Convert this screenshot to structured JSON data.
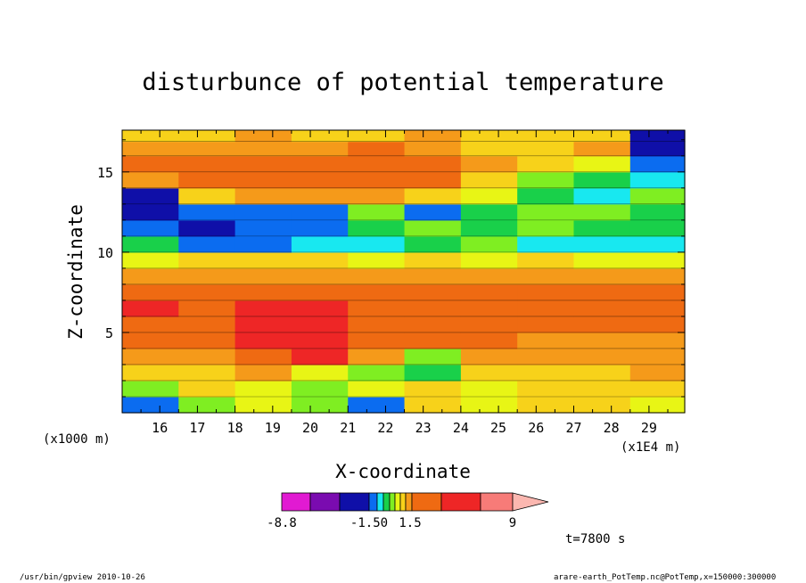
{
  "chart_data": {
    "type": "heatmap",
    "title": "disturbunce of potential temperature",
    "xlabel": "X-coordinate",
    "ylabel": "Z-coordinate",
    "x_unit": "(x1E4 m)",
    "y_unit": "(x1000 m)",
    "x_ticks": [
      16,
      17,
      18,
      19,
      20,
      21,
      22,
      23,
      24,
      25,
      26,
      27,
      28,
      29
    ],
    "y_ticks": [
      5,
      10,
      15
    ],
    "xlim": [
      15.0,
      29.95
    ],
    "ylim": [
      0,
      17.6
    ],
    "time_label": "t=7800 s",
    "colorbar": {
      "labels": [
        "-8.8",
        "-1.50",
        "1.5",
        "9"
      ],
      "levels": [
        -8.8,
        -6.0,
        -3.5,
        -1.5,
        -1.0,
        -0.5,
        0,
        0.5,
        1.0,
        1.5,
        3.5,
        6.0,
        9
      ],
      "colors": [
        "#e11ad2",
        "#7a0bb0",
        "#0f0fa8",
        "#0b6cf0",
        "#18e8f0",
        "#19d04a",
        "#7fee22",
        "#e8f515",
        "#f7d21a",
        "#f59a1a",
        "#ef6a12",
        "#ee2626",
        "#f77b78",
        "#fbb7b0"
      ]
    },
    "rows_z": [
      0.5,
      1.5,
      2.5,
      3.5,
      4.5,
      5.5,
      6.5,
      7.5,
      8.5,
      9.5,
      10.5,
      11.5,
      12.5,
      13.5,
      14.5,
      15.5,
      16.5,
      17.3
    ],
    "rows_x_breaks": [
      15.0,
      16.5,
      18.0,
      19.5,
      21.0,
      22.5,
      24.0,
      25.5,
      27.0,
      28.5,
      29.95
    ],
    "values_level_index": [
      [
        3,
        6,
        7,
        6,
        3,
        8,
        7,
        8,
        8,
        7
      ],
      [
        6,
        8,
        7,
        6,
        7,
        8,
        7,
        8,
        8,
        8
      ],
      [
        8,
        8,
        9,
        7,
        6,
        5,
        8,
        8,
        8,
        9
      ],
      [
        9,
        9,
        10,
        11,
        9,
        6,
        9,
        9,
        9,
        9
      ],
      [
        10,
        10,
        11,
        11,
        10,
        10,
        10,
        9,
        9,
        9
      ],
      [
        10,
        10,
        11,
        11,
        10,
        10,
        10,
        10,
        10,
        10
      ],
      [
        11,
        10,
        11,
        11,
        10,
        10,
        10,
        10,
        10,
        10
      ],
      [
        10,
        10,
        10,
        10,
        10,
        10,
        10,
        10,
        10,
        10
      ],
      [
        9,
        9,
        9,
        9,
        9,
        9,
        9,
        9,
        9,
        9
      ],
      [
        7,
        8,
        8,
        8,
        7,
        8,
        7,
        8,
        7,
        7
      ],
      [
        5,
        3,
        3,
        4,
        4,
        5,
        6,
        4,
        4,
        4
      ],
      [
        3,
        2,
        3,
        3,
        5,
        6,
        5,
        6,
        5,
        5
      ],
      [
        2,
        3,
        3,
        3,
        6,
        3,
        5,
        6,
        6,
        5
      ],
      [
        2,
        8,
        9,
        9,
        9,
        8,
        7,
        5,
        4,
        6
      ],
      [
        9,
        10,
        10,
        10,
        10,
        10,
        8,
        6,
        5,
        4
      ],
      [
        10,
        10,
        10,
        10,
        10,
        10,
        9,
        8,
        7,
        3
      ],
      [
        9,
        9,
        9,
        9,
        10,
        9,
        8,
        8,
        9,
        2
      ],
      [
        8,
        8,
        9,
        8,
        8,
        9,
        8,
        8,
        8,
        2
      ]
    ]
  },
  "footer": {
    "left": "/usr/bin/gpview   2010-10-26",
    "right": "arare-earth_PotTemp.nc@PotTemp,x=150000:300000"
  }
}
